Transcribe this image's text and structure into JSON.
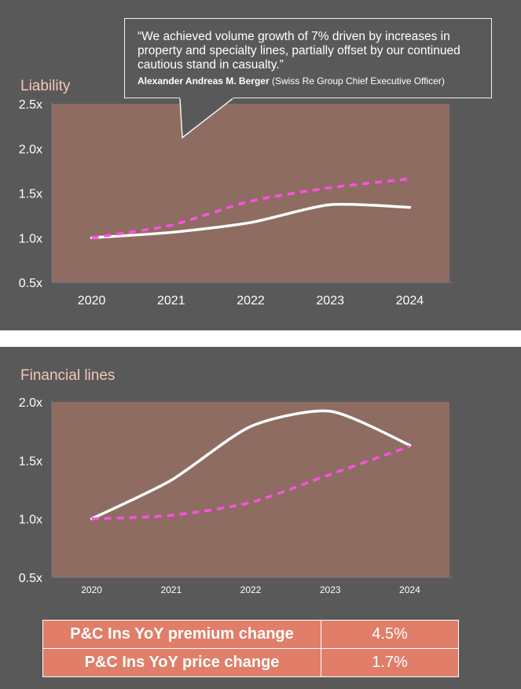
{
  "quote": {
    "text": "“We achieved volume growth of 7% driven by increases in property and specialty lines, partially offset by our continued cautious stand in casualty.”",
    "author": "Alexander Andreas M. Berger",
    "role": "(Swiss Re Group Chief Executive Officer)"
  },
  "chart_data": [
    {
      "type": "line",
      "title": "Liability",
      "categories": [
        "2020",
        "2021",
        "2022",
        "2023",
        "2024"
      ],
      "ylim": [
        0.5,
        2.5
      ],
      "yticks": [
        "0.5x",
        "1.0x",
        "1.5x",
        "2.0x",
        "2.5x"
      ],
      "grid": false,
      "series": [
        {
          "style": "solid",
          "color": "#ffffff",
          "values": [
            1.0,
            1.06,
            1.17,
            1.37,
            1.34
          ]
        },
        {
          "style": "dashed",
          "color": "#ff4fe3",
          "values": [
            1.0,
            1.14,
            1.41,
            1.56,
            1.66
          ]
        }
      ]
    },
    {
      "type": "line",
      "title": "Financial lines",
      "categories": [
        "2020",
        "2021",
        "2022",
        "2023",
        "2024"
      ],
      "ylim": [
        0.5,
        2.0
      ],
      "yticks": [
        "0.5x",
        "1.0x",
        "1.5x",
        "2.0x"
      ],
      "grid": false,
      "series": [
        {
          "style": "solid",
          "color": "#ffffff",
          "values": [
            1.0,
            1.33,
            1.79,
            1.92,
            1.63
          ]
        },
        {
          "style": "dashed",
          "color": "#ff4fe3",
          "values": [
            1.0,
            1.03,
            1.14,
            1.38,
            1.62
          ]
        }
      ]
    }
  ],
  "metrics": [
    {
      "label": "P&C Ins YoY premium change",
      "value": "4.5%"
    },
    {
      "label": "P&C Ins YoY price change",
      "value": "1.7%"
    }
  ]
}
